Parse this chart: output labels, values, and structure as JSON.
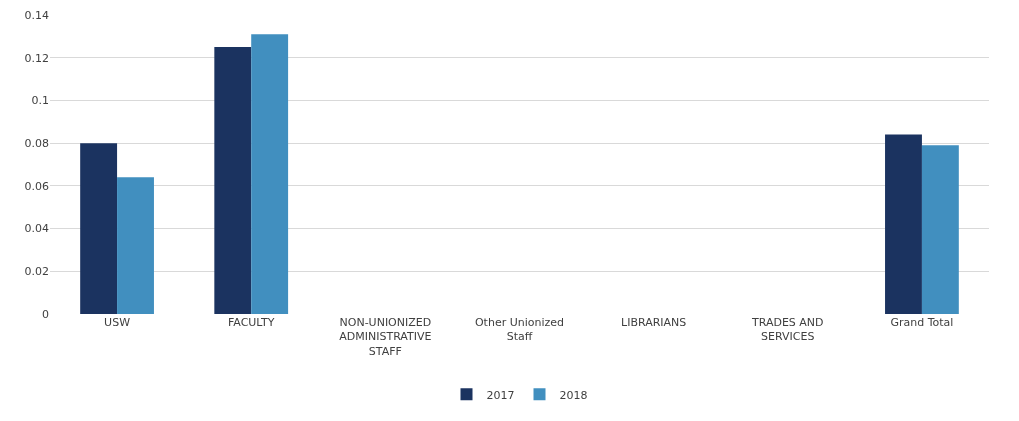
{
  "chart_data": {
    "type": "bar",
    "categories": [
      "USW",
      "FACULTY",
      "NON-UNIONIZED ADMINISTRATIVE STAFF",
      "Other Unionized Staff",
      "LIBRARIANS",
      "TRADES AND SERVICES",
      "Grand Total"
    ],
    "series": [
      {
        "name": "2017",
        "color": "#1b3360",
        "values": [
          0.08,
          0.125,
          0,
          0,
          0,
          0,
          0.084
        ]
      },
      {
        "name": "2018",
        "color": "#418fbf",
        "values": [
          0.064,
          0.131,
          0,
          0,
          0,
          0,
          0.079
        ]
      }
    ],
    "ylim": [
      0,
      0.14
    ],
    "yticks": [
      0,
      0.02,
      0.04,
      0.06,
      0.08,
      {
        "value": 0.1,
        "label": "0.1"
      },
      0.12,
      0.14
    ],
    "grid": "y",
    "legend": "bottom"
  }
}
